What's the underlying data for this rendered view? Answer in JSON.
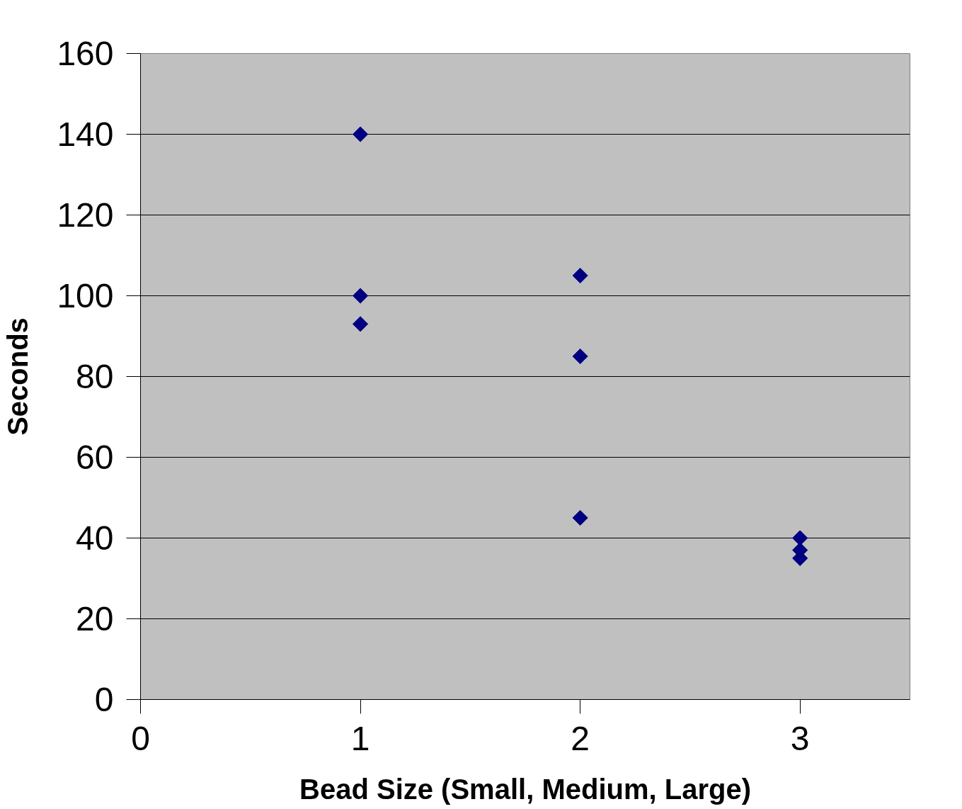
{
  "chart_data": {
    "type": "scatter",
    "xlabel": "Bead Size (Small, Medium, Large)",
    "ylabel": "Seconds",
    "x": [
      1,
      1,
      1,
      2,
      2,
      2,
      3,
      3,
      3
    ],
    "series": [
      {
        "color": "#000080",
        "values": [
          140,
          100,
          93,
          105,
          85,
          45,
          40,
          37,
          35
        ]
      }
    ],
    "xlim": [
      0,
      3.5
    ],
    "xticks": [
      0,
      1,
      2,
      3
    ],
    "ylim": [
      0,
      160
    ],
    "yticks": [
      0,
      20,
      40,
      60,
      80,
      100,
      120,
      140,
      160
    ],
    "grid": "y",
    "marker": "diamond"
  }
}
